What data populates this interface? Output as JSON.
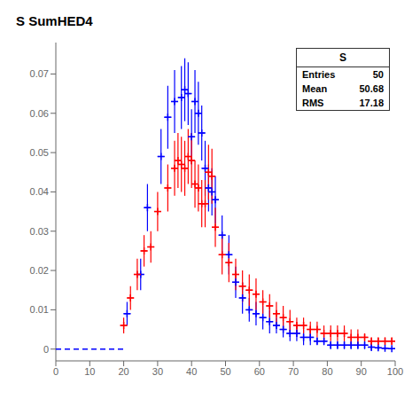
{
  "chart_data": {
    "type": "scatter",
    "title": "S SumHED4",
    "xlim": [
      0,
      100
    ],
    "ylim": [
      -0.003,
      0.078
    ],
    "xticks": [
      0,
      10,
      20,
      30,
      40,
      50,
      60,
      70,
      80,
      90,
      100
    ],
    "yticks": [
      0.0,
      0.01,
      0.02,
      0.03,
      0.04,
      0.05,
      0.06,
      0.07
    ],
    "grid": false,
    "annotations": [
      "S",
      "Entries",
      "50",
      "Mean",
      "50.68",
      "RMS",
      "17.18"
    ],
    "series": [
      {
        "type": "line",
        "line_style": "dashed",
        "color": "blue",
        "x": [
          0,
          20
        ],
        "values": [
          0,
          0
        ]
      },
      {
        "type": "scatter",
        "marker": "plus",
        "color": "blue",
        "x": [
          21,
          25,
          27,
          31,
          33,
          35,
          37,
          38,
          39,
          40,
          41,
          42,
          43,
          44,
          45,
          46,
          47,
          49,
          51,
          53,
          55,
          57,
          59,
          61,
          63,
          65,
          67,
          69,
          71,
          73,
          75,
          77,
          79,
          81,
          83,
          85,
          87,
          89,
          91,
          93,
          95,
          97,
          99
        ],
        "values": [
          0.009,
          0.019,
          0.036,
          0.049,
          0.059,
          0.063,
          0.064,
          0.066,
          0.065,
          0.054,
          0.063,
          0.06,
          0.055,
          0.046,
          0.041,
          0.04,
          0.038,
          0.029,
          0.024,
          0.017,
          0.013,
          0.01,
          0.009,
          0.008,
          0.007,
          0.006,
          0.005,
          0.004,
          0.004,
          0.003,
          0.003,
          0.002,
          0.002,
          0.001,
          0.001,
          0.001,
          0.001,
          0.001,
          0.001,
          0.0005,
          0.0003,
          0.0002,
          0.0001
        ],
        "yerr": [
          0.003,
          0.004,
          0.006,
          0.007,
          0.008,
          0.008,
          0.008,
          0.008,
          0.008,
          0.007,
          0.008,
          0.008,
          0.007,
          0.007,
          0.006,
          0.006,
          0.006,
          0.005,
          0.005,
          0.004,
          0.004,
          0.003,
          0.003,
          0.003,
          0.003,
          0.002,
          0.002,
          0.002,
          0.002,
          0.002,
          0.002,
          0.001,
          0.001,
          0.001,
          0.001,
          0.001,
          0.001,
          0.001,
          0.001,
          0.001,
          0.0005,
          0.0003,
          0.0001
        ],
        "xerr": 1.0
      },
      {
        "type": "scatter",
        "marker": "plus",
        "color": "red",
        "x": [
          20,
          22,
          24,
          26,
          28,
          30,
          33,
          35,
          36,
          37,
          38,
          39,
          40,
          41,
          42,
          43,
          44,
          45,
          46,
          47,
          49,
          51,
          53,
          55,
          57,
          59,
          61,
          63,
          65,
          67,
          69,
          71,
          73,
          75,
          77,
          79,
          81,
          83,
          85,
          87,
          89,
          91,
          93,
          95,
          97,
          99
        ],
        "values": [
          0.006,
          0.013,
          0.019,
          0.025,
          0.026,
          0.035,
          0.041,
          0.046,
          0.048,
          0.047,
          0.046,
          0.049,
          0.048,
          0.042,
          0.041,
          0.037,
          0.037,
          0.045,
          0.044,
          0.031,
          0.024,
          0.022,
          0.019,
          0.016,
          0.015,
          0.014,
          0.012,
          0.011,
          0.009,
          0.008,
          0.007,
          0.006,
          0.006,
          0.005,
          0.005,
          0.004,
          0.004,
          0.004,
          0.004,
          0.003,
          0.003,
          0.003,
          0.002,
          0.002,
          0.002,
          0.002
        ],
        "yerr": [
          0.002,
          0.003,
          0.004,
          0.004,
          0.004,
          0.005,
          0.006,
          0.007,
          0.007,
          0.007,
          0.007,
          0.007,
          0.007,
          0.006,
          0.006,
          0.006,
          0.006,
          0.007,
          0.007,
          0.005,
          0.005,
          0.005,
          0.004,
          0.004,
          0.004,
          0.004,
          0.003,
          0.003,
          0.003,
          0.003,
          0.003,
          0.002,
          0.002,
          0.002,
          0.002,
          0.002,
          0.002,
          0.002,
          0.002,
          0.002,
          0.002,
          0.001,
          0.001,
          0.001,
          0.001,
          0.001
        ],
        "xerr": 1.0
      }
    ]
  }
}
